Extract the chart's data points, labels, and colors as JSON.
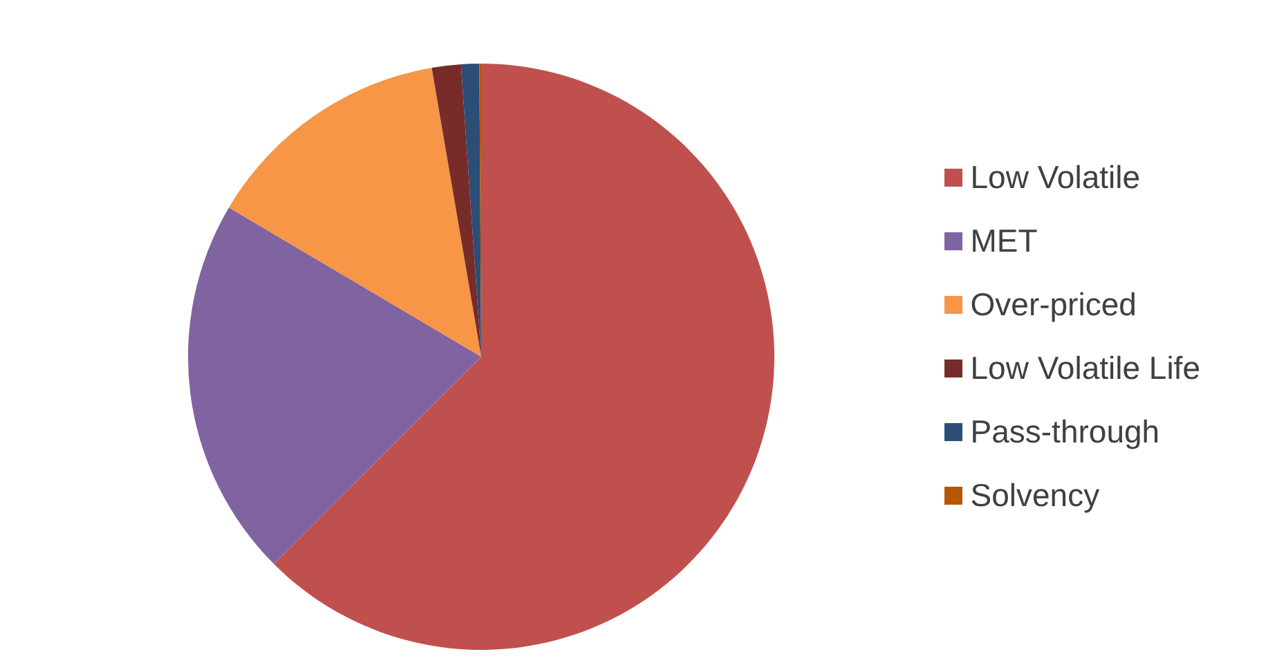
{
  "chart_data": {
    "type": "pie",
    "categories": [
      "Low Volatile",
      "MET",
      "Over-priced",
      "Low Volatile Life",
      "Pass-through",
      "Solvency"
    ],
    "values": [
      62.5,
      21,
      13.8,
      1.6,
      1.0,
      0.1
    ],
    "colors": [
      "#c0504d",
      "#8064a2",
      "#f79646",
      "#772c2a",
      "#2c4d75",
      "#b65708"
    ],
    "legend": "right"
  }
}
